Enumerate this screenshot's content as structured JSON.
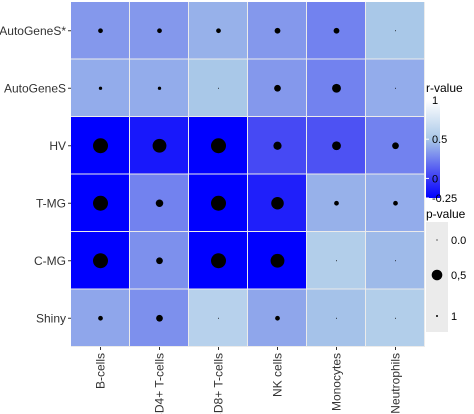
{
  "chart_data": {
    "type": "heatmap",
    "title": "",
    "xlabel": "",
    "ylabel": "",
    "columns": [
      "B-cells",
      "CD4+ T-cells",
      "CD8+ T-cells",
      "NK cells",
      "Monocytes",
      "Neutrophils"
    ],
    "rows": [
      "AutoGeneS*",
      "AutoGeneS",
      "HV",
      "T-MG",
      "C-MG",
      "Shiny"
    ],
    "r_values": [
      [
        0.33,
        0.33,
        0.42,
        0.33,
        0.25,
        0.5
      ],
      [
        0.4,
        0.4,
        0.5,
        0.33,
        0.25,
        0.4
      ],
      [
        -0.25,
        -0.15,
        -0.25,
        0.05,
        0.08,
        0.25
      ],
      [
        -0.25,
        0.25,
        -0.25,
        -0.12,
        0.42,
        0.4
      ],
      [
        -0.25,
        0.3,
        -0.25,
        -0.25,
        0.55,
        0.45
      ],
      [
        0.38,
        0.3,
        0.58,
        0.38,
        0.48,
        0.55
      ]
    ],
    "p_values": [
      [
        0.9,
        0.9,
        0.9,
        0.85,
        0.85,
        1.0
      ],
      [
        0.95,
        0.95,
        1.0,
        0.8,
        0.65,
        1.0
      ],
      [
        0.0,
        0.15,
        0.0,
        0.7,
        0.65,
        0.8
      ],
      [
        0.0,
        0.75,
        0.0,
        0.3,
        0.9,
        0.9
      ],
      [
        0.0,
        0.8,
        0.0,
        0.15,
        1.0,
        1.0
      ],
      [
        0.9,
        0.8,
        1.0,
        0.9,
        1.0,
        1.0
      ]
    ],
    "color_scale": {
      "title": "r-value",
      "min": -0.25,
      "max": 1,
      "ticks": [
        1,
        0.5,
        0,
        -0.25
      ],
      "tick_labels": [
        "1",
        "0.5",
        "0",
        "-0.25"
      ],
      "low_color": "#0000FF",
      "high_color": "#FFFFFF"
    },
    "size_legend": {
      "title": "p-value",
      "entries": [
        {
          "label": "0.0",
          "value": 1.0
        },
        {
          "label": "0,5",
          "value": 0.5
        },
        {
          "label": "1",
          "value": 0.0
        }
      ],
      "background": "#EBEBEB"
    },
    "grid": true,
    "legend_position": "right"
  }
}
